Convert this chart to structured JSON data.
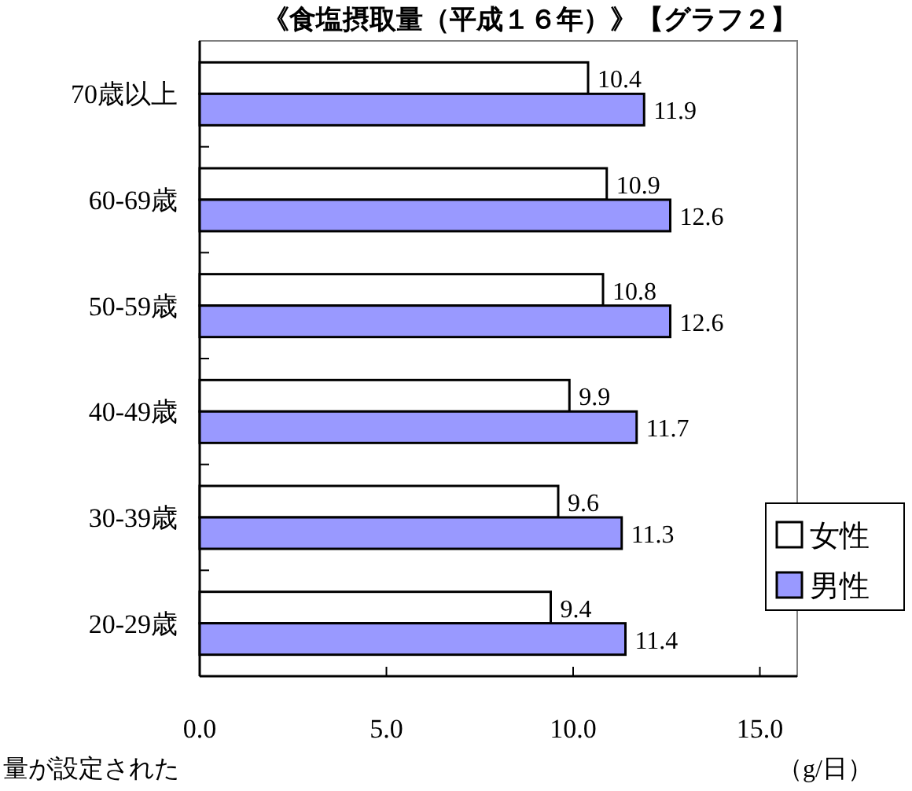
{
  "chart_data": {
    "type": "bar",
    "orientation": "horizontal",
    "title": "《食塩摂取量（平成１６年）》【グラフ２】",
    "xlabel": "（g/日）",
    "annotations": [
      "量が設定された"
    ],
    "categories": [
      "70歳以上",
      "60-69歳",
      "50-59歳",
      "40-49歳",
      "30-39歳",
      "20-29歳"
    ],
    "series": [
      {
        "name": "女性",
        "color": "#ffffff",
        "values": [
          10.4,
          10.9,
          10.8,
          9.9,
          9.6,
          9.4
        ]
      },
      {
        "name": "男性",
        "color": "#9999ff",
        "values": [
          11.9,
          12.6,
          12.6,
          11.7,
          11.3,
          11.4
        ]
      }
    ],
    "xlim": [
      0,
      16
    ],
    "xticks": [
      {
        "value": 0,
        "label": "0.0"
      },
      {
        "value": 5,
        "label": "5.0"
      },
      {
        "value": 10,
        "label": "10.0"
      },
      {
        "value": 15,
        "label": "15.0"
      }
    ],
    "data_labels": true,
    "legend": "right"
  }
}
